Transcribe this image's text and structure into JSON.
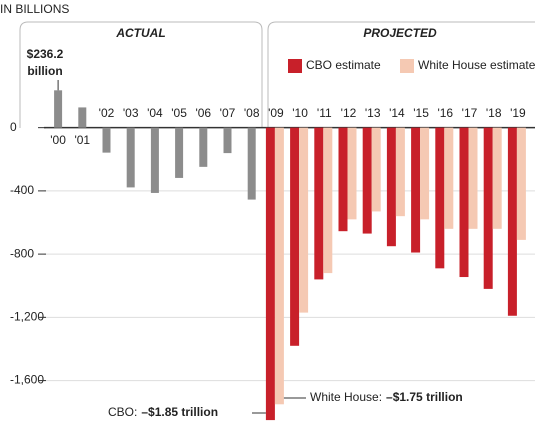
{
  "chart_data": {
    "type": "bar",
    "unit_label": "IN BILLIONS",
    "section_labels": [
      "ACTUAL",
      "PROJECTED"
    ],
    "categories": [
      "'00",
      "'01",
      "'02",
      "'03",
      "'04",
      "'05",
      "'06",
      "'07",
      "'08",
      "'09",
      "'10",
      "'11",
      "'12",
      "'13",
      "'14",
      "'15",
      "'16",
      "'17",
      "'18",
      "'19"
    ],
    "series": [
      {
        "name": "Actual",
        "color": "#8c8c8c",
        "values": [
          236.2,
          128,
          -158,
          -378,
          -413,
          -318,
          -248,
          -161,
          -455,
          null,
          null,
          null,
          null,
          null,
          null,
          null,
          null,
          null,
          null,
          null
        ]
      },
      {
        "name": "CBO estimate",
        "color": "#c8202a",
        "values": [
          null,
          null,
          null,
          null,
          null,
          null,
          null,
          null,
          null,
          -1850,
          -1380,
          -960,
          -655,
          -670,
          -750,
          -790,
          -890,
          -945,
          -1020,
          -1190
        ]
      },
      {
        "name": "White House estimate",
        "color": "#f5c9b3",
        "values": [
          null,
          null,
          null,
          null,
          null,
          null,
          null,
          null,
          null,
          -1750,
          -1170,
          -920,
          -580,
          -530,
          -560,
          -580,
          -640,
          -640,
          -640,
          -710
        ]
      }
    ],
    "ylim": [
      -1900,
      700
    ],
    "yticks": [
      0,
      -400,
      -800,
      {
        "value": -1200,
        "label": "-1,200"
      },
      {
        "value": -1600,
        "label": "-1,600"
      }
    ],
    "grid": true,
    "annotations": {
      "actual_peak": [
        "$236.2",
        "billion"
      ],
      "cbo": {
        "label": "CBO:",
        "value": "–$1.85 trillion"
      },
      "white_house": {
        "label": "White House:",
        "value": "–$1.75 trillion"
      }
    }
  }
}
